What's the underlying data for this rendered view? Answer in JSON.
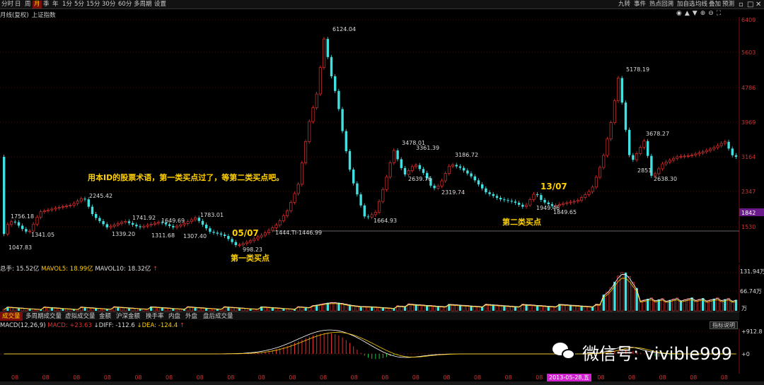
{
  "toolbar": {
    "timeframes": [
      "分时",
      "日",
      "周",
      "月",
      "季",
      "年",
      "1分",
      "5分",
      "15分",
      "30分",
      "60分",
      "多周期",
      "设置"
    ],
    "active_timeframe": "月",
    "right_buttons": [
      "九转",
      "事件",
      "热点回溯",
      "加自选",
      "均线",
      "叠加",
      "预测"
    ]
  },
  "chart_header": {
    "label": "月线(复权)",
    "index_name": "上证指数"
  },
  "price_axis": {
    "ticks": [
      "6409",
      "5603",
      "4786",
      "3969",
      "3164",
      "2347",
      "1530"
    ],
    "current_price": "1842"
  },
  "price_labels": {
    "p6124": "6124.04",
    "p5178": "5178.19",
    "p3678": "3678.27",
    "p3478": "3478.01",
    "p3361": "3361.39",
    "p3186": "3186.72",
    "p2639": "2639.76",
    "p2319": "2319.74",
    "p2245": "2245.42",
    "p1756": "1756.18",
    "p1741": "1741.92",
    "p1649": "1649.69",
    "p1783": "1783.01",
    "p1341": "1341.05",
    "p1339": "1339.20",
    "p1311": "1311.68",
    "p1307": "1307.40",
    "p1047": "1047.83",
    "p998": "998.23",
    "p1664": "1664.93",
    "p1849": "1849.65",
    "p1949": "1949.46",
    "p2851": "2851",
    "p2638": "2638.30",
    "hline": "1444.TI-1446.99"
  },
  "annotations": {
    "main_note": "用本ID的股票术语，第一类买点过了，等第二类买点吧。",
    "date_first": "05/07",
    "first_buy": "第一类买点",
    "date_second": "13/07",
    "second_buy": "第二类买点"
  },
  "volume": {
    "label_total": "总手:",
    "total_value": "15.52亿",
    "label_mavol5": "MAVOL5:",
    "mavol5_value": "18.99亿",
    "label_mavol10": "MAVOL10:",
    "mavol10_value": "18.32亿",
    "axis_top": "131.94万",
    "axis_mid": "66.74万",
    "axis_unit": "万",
    "tabs": [
      "成交量",
      "多周期成交量",
      "虚拟成交量",
      "金额",
      "沪深金额",
      "换手率",
      "内盘",
      "外盘",
      "盘后成交量"
    ],
    "active_tab": "成交量"
  },
  "macd": {
    "label_macd": "MACD(12,26,9)",
    "label_macd2": "MACD:",
    "macd_value": "+23.63",
    "label_diff": "DIFF:",
    "diff_value": "-112.6",
    "label_dea": "DEA:",
    "dea_value": "-124.4",
    "indicator_button": "指标说明",
    "axis_top": "+912.8",
    "axis_zero": "+0"
  },
  "x_axis": {
    "ticks": [
      "08",
      "08",
      "08",
      "08",
      "08",
      "08",
      "08",
      "08",
      "08",
      "08",
      "08",
      "08",
      "08",
      "08",
      "08",
      "08",
      "08",
      "08",
      "08",
      "08",
      "08",
      "08",
      "08",
      "08"
    ],
    "highlighted_date": "2013-05-28,五"
  },
  "watermark": {
    "text": "微信号: vivible999"
  },
  "colors": {
    "up": "#e03030",
    "down": "#40e0e0",
    "accent_yellow": "#ffd000",
    "active_tab_bg": "#7a0c0c",
    "price_highlight": "#6a1a8a"
  }
}
